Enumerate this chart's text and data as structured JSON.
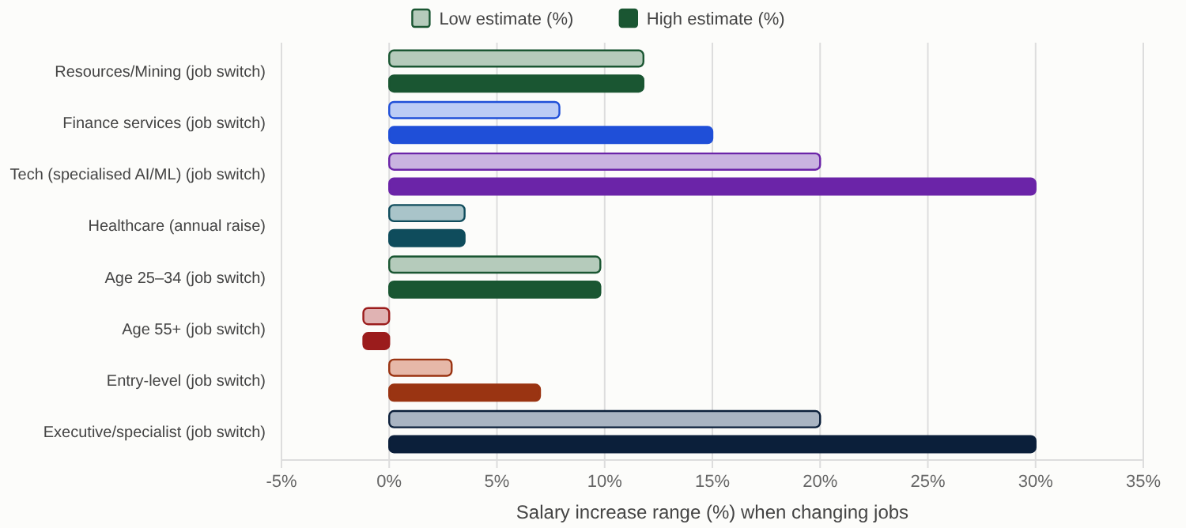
{
  "chart_data": {
    "type": "bar",
    "orientation": "horizontal",
    "xlabel": "Salary increase range (%) when changing jobs",
    "categories": [
      "Resources/Mining (job switch)",
      "Finance services (job switch)",
      "Tech (specialised AI/ML) (job switch)",
      "Healthcare (annual raise)",
      "Age 25–34 (job switch)",
      "Age 55+ (job switch)",
      "Entry-level (job switch)",
      "Executive/specialist (job switch)"
    ],
    "series": [
      {
        "name": "Low estimate (%)",
        "values": [
          11.8,
          7.9,
          20,
          3.5,
          9.8,
          -1.2,
          2.9,
          20
        ],
        "colors": [
          "#b5cbbb",
          "#bcccf5",
          "#c9b3e0",
          "#a9c4c9",
          "#b5cbbb",
          "#e0b3b3",
          "#e6b8a8",
          "#a9b4c2"
        ]
      },
      {
        "name": "High estimate (%)",
        "values": [
          11.8,
          15,
          30,
          3.5,
          9.8,
          -1.2,
          7,
          30
        ],
        "colors": [
          "#1a5632",
          "#1f4fd8",
          "#6b24a8",
          "#0f4c5c",
          "#1a5632",
          "#9b1c1c",
          "#9a3412",
          "#0b1f3a"
        ]
      }
    ],
    "xlim": [
      -5,
      35
    ],
    "xticks": [
      {
        "value": -5,
        "label": "-5%"
      },
      {
        "value": 0,
        "label": "0%"
      },
      {
        "value": 5,
        "label": "5%"
      },
      {
        "value": 10,
        "label": "10%"
      },
      {
        "value": 15,
        "label": "15%"
      },
      {
        "value": 20,
        "label": "20%"
      },
      {
        "value": 25,
        "label": "25%"
      },
      {
        "value": 30,
        "label": "30%"
      },
      {
        "value": 35,
        "label": "35%"
      }
    ],
    "grid": "x",
    "legend": "top"
  }
}
